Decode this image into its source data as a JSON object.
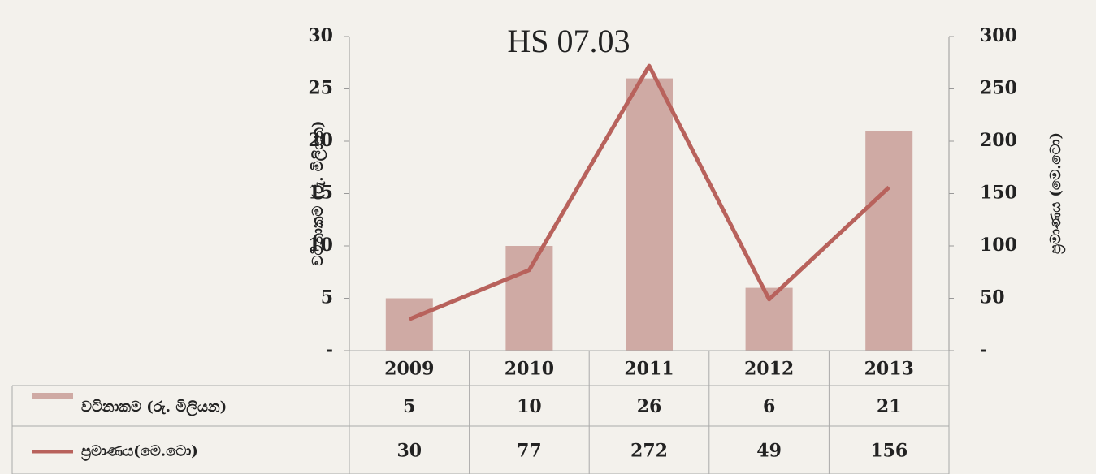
{
  "chart_data": {
    "type": "bar-line",
    "title": "HS 07.03",
    "categories": [
      "2009",
      "2010",
      "2011",
      "2012",
      "2013"
    ],
    "series": [
      {
        "name": "වටිනාකම (රු. මිලියන)",
        "type": "bar",
        "color": "#cfaaa4",
        "values": [
          5,
          10,
          26,
          6,
          21
        ]
      },
      {
        "name": "ප්‍රමාණය(මෙ.ටො)",
        "type": "line",
        "axis": "y2",
        "color": "#b8625c",
        "values": [
          30,
          77,
          272,
          49,
          156
        ]
      }
    ],
    "y_label": "වටිනාකම (රු. මිලියන)",
    "y2_label": "ප්‍රමාණය (මෙ.ටො)",
    "ylim": [
      0,
      30
    ],
    "yticks": [
      {
        "value": 0,
        "label": "-"
      },
      5,
      10,
      15,
      20,
      25,
      30
    ],
    "y2lim": [
      0,
      300
    ],
    "y2ticks": [
      {
        "value": 0,
        "label": "-"
      },
      50,
      100,
      150,
      200,
      250,
      300
    ],
    "grid": false
  }
}
